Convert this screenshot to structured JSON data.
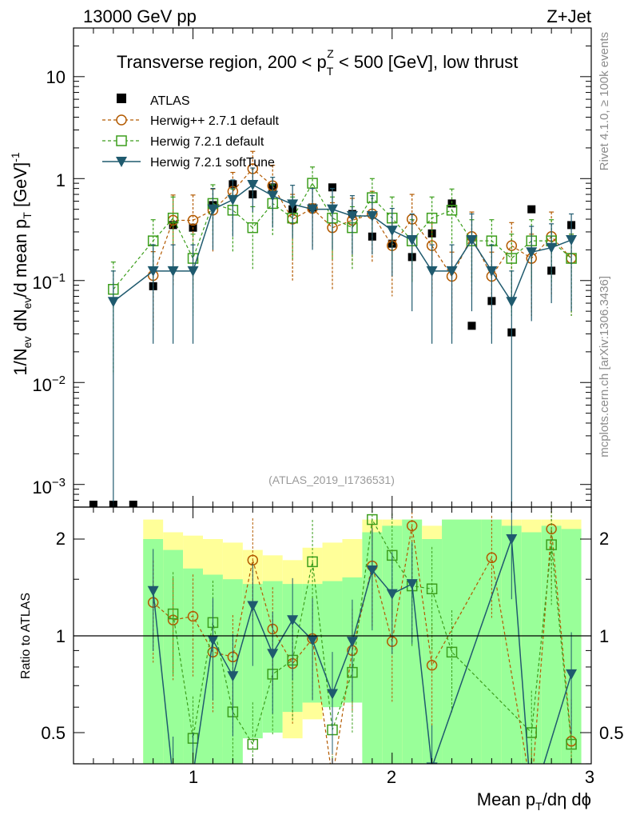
{
  "header": {
    "energy": "13000 GeV pp",
    "process": "Z+Jet"
  },
  "side_labels": {
    "rivet": "Rivet 4.1.0, ≥ 100k events",
    "mcplots": "mcplots.cern.ch [arXiv:1306.3436]"
  },
  "chart_data": {
    "type": "scatter",
    "title": "Transverse region, 200 < p_T^Z < 500 [GeV], low thrust",
    "watermark": "(ATLAS_2019_I1736531)",
    "xlabel": "Mean p_T/dη dϕ",
    "ylabel": "1/N_ev dN_ev/d mean p_T [GeV]^-1",
    "ratio_ylabel": "Ratio to ATLAS",
    "xlim": [
      0.4,
      3.0
    ],
    "ylim": [
      0.0006,
      30
    ],
    "ratio_ylim": [
      0.33,
      2.3
    ],
    "yscale": "log",
    "x_ticks": [
      "1",
      "2",
      "3"
    ],
    "y_ticks": [
      "10^-3",
      "10^-2",
      "10^-1",
      "1",
      "10"
    ],
    "ratio_ticks": [
      "0.5",
      "1",
      "2"
    ],
    "legend": [
      "ATLAS",
      "Herwig++ 2.7.1 default",
      "Herwig 7.2.1 default",
      "Herwig 7.2.1 softTune"
    ],
    "series": [
      {
        "name": "ATLAS",
        "color": "#000000",
        "marker": "square-filled",
        "x": [
          0.5,
          0.6,
          0.7,
          0.8,
          0.9,
          1.0,
          1.1,
          1.2,
          1.3,
          1.4,
          1.5,
          1.6,
          1.7,
          1.8,
          1.9,
          2.0,
          2.1,
          2.2,
          2.3,
          2.4,
          2.5,
          2.6,
          2.7,
          2.8,
          2.9
        ],
        "y": [
          0.00065,
          0.00065,
          0.00065,
          0.088,
          0.35,
          0.33,
          0.55,
          0.88,
          0.7,
          0.82,
          0.5,
          0.52,
          0.82,
          0.45,
          0.27,
          0.23,
          0.17,
          0.29,
          0.57,
          0.036,
          0.063,
          0.031,
          0.5,
          0.125,
          0.35
        ]
      },
      {
        "name": "Herwig++ 2.7.1 default",
        "color": "#b35a00",
        "marker": "circle-open",
        "dash": "4,3",
        "x": [
          0.8,
          0.9,
          1.0,
          1.1,
          1.2,
          1.3,
          1.4,
          1.5,
          1.6,
          1.7,
          1.8,
          1.9,
          2.0,
          2.1,
          2.2,
          2.3,
          2.4,
          2.5,
          2.6,
          2.7,
          2.8,
          2.9
        ],
        "y": [
          0.112,
          0.39,
          0.39,
          0.49,
          0.75,
          1.25,
          0.85,
          0.4,
          0.51,
          0.33,
          0.39,
          0.45,
          0.22,
          0.4,
          0.22,
          0.11,
          0.27,
          0.11,
          0.22,
          0.165,
          0.27,
          0.165
        ],
        "err": [
          0.08,
          0.3,
          0.3,
          0.3,
          0.4,
          0.6,
          0.5,
          0.3,
          0.3,
          0.25,
          0.25,
          0.3,
          0.15,
          0.3,
          0.15,
          0.08,
          0.2,
          0.08,
          0.15,
          0.12,
          0.2,
          0.12
        ]
      },
      {
        "name": "Herwig 7.2.1 default",
        "color": "#3c9e1c",
        "marker": "square-open",
        "dash": "4,3",
        "x": [
          0.6,
          0.8,
          0.9,
          1.0,
          1.1,
          1.2,
          1.3,
          1.4,
          1.5,
          1.6,
          1.7,
          1.8,
          1.9,
          2.0,
          2.1,
          2.2,
          2.3,
          2.4,
          2.5,
          2.6,
          2.7,
          2.8,
          2.9
        ],
        "y": [
          0.082,
          0.245,
          0.41,
          0.165,
          0.57,
          0.49,
          0.33,
          0.57,
          0.41,
          0.9,
          0.41,
          0.33,
          0.65,
          0.41,
          0.245,
          0.41,
          0.49,
          0.245,
          0.245,
          0.165,
          0.245,
          0.245,
          0.165
        ],
        "err": [
          0.07,
          0.15,
          0.25,
          0.12,
          0.3,
          0.3,
          0.2,
          0.3,
          0.25,
          0.4,
          0.25,
          0.2,
          0.35,
          0.25,
          0.15,
          0.25,
          0.3,
          0.15,
          0.15,
          0.12,
          0.15,
          0.15,
          0.12
        ]
      },
      {
        "name": "Herwig 7.2.1 softTune",
        "color": "#1f5a6e",
        "marker": "triangle-down",
        "dash": "",
        "x": [
          0.6,
          0.8,
          0.9,
          1.0,
          1.1,
          1.2,
          1.3,
          1.4,
          1.5,
          1.6,
          1.7,
          1.8,
          1.9,
          2.0,
          2.1,
          2.2,
          2.3,
          2.4,
          2.5,
          2.6,
          2.7,
          2.8,
          2.9
        ],
        "y": [
          0.062,
          0.124,
          0.124,
          0.124,
          0.5,
          0.62,
          0.87,
          0.68,
          0.56,
          0.5,
          0.5,
          0.43,
          0.43,
          0.31,
          0.25,
          0.124,
          0.124,
          0.25,
          0.124,
          0.062,
          0.19,
          0.21,
          0.25
        ],
        "err": [
          0.062,
          0.1,
          0.1,
          0.1,
          0.3,
          0.35,
          0.4,
          0.35,
          0.3,
          0.3,
          0.3,
          0.25,
          0.25,
          0.2,
          0.2,
          0.1,
          0.1,
          0.2,
          0.1,
          0.062,
          0.15,
          0.15,
          0.2
        ]
      }
    ],
    "ratio_series": [
      {
        "name": "Herwig++ 2.7.1 default",
        "x": [
          0.8,
          0.9,
          1.0,
          1.1,
          1.2,
          1.3,
          1.4,
          1.5,
          1.6,
          1.7,
          1.8,
          1.9,
          2.0,
          2.1,
          2.2,
          2.5,
          2.7,
          2.8,
          2.9
        ],
        "y": [
          1.27,
          1.12,
          1.15,
          0.89,
          0.86,
          1.72,
          1.05,
          0.82,
          0.98,
          0.36,
          0.9,
          1.65,
          0.96,
          2.2,
          0.81,
          1.75,
          0.33,
          2.15,
          0.47
        ]
      },
      {
        "name": "Herwig 7.2.1 default",
        "x": [
          0.9,
          1.0,
          1.1,
          1.2,
          1.3,
          1.4,
          1.5,
          1.6,
          1.7,
          1.8,
          1.9,
          2.0,
          2.1,
          2.2,
          2.3,
          2.7,
          2.8,
          2.9
        ],
        "y": [
          1.17,
          0.48,
          1.1,
          0.58,
          0.46,
          0.76,
          0.84,
          1.7,
          0.51,
          0.77,
          2.3,
          1.78,
          1.43,
          1.4,
          0.89,
          0.5,
          1.92,
          0.46
        ]
      },
      {
        "name": "Herwig 7.2.1 softTune",
        "x": [
          0.8,
          0.9,
          1.0,
          1.1,
          1.2,
          1.3,
          1.4,
          1.5,
          1.6,
          1.7,
          1.8,
          1.9,
          2.0,
          2.1,
          2.2,
          2.6,
          2.7,
          2.9
        ],
        "y": [
          1.38,
          0.36,
          0.37,
          0.97,
          0.75,
          1.24,
          0.88,
          1.12,
          0.97,
          0.66,
          0.96,
          1.6,
          1.35,
          1.45,
          0.39,
          2.0,
          0.3,
          0.76
        ]
      }
    ],
    "ratio_bands": {
      "x": [
        0.75,
        0.85,
        0.95,
        1.05,
        1.15,
        1.25,
        1.35,
        1.45,
        1.55,
        1.65,
        1.75,
        1.85,
        1.95,
        2.05,
        2.15,
        2.25,
        2.35,
        2.45,
        2.55,
        2.65,
        2.75,
        2.85,
        2.95
      ],
      "yellow_lo": [
        0.33,
        0.33,
        0.33,
        0.38,
        0.45,
        0.58,
        0.55,
        0.48,
        0.55,
        0.7,
        0.72,
        0.45,
        0.33,
        0.33,
        0.33,
        0.33,
        0.33,
        0.33,
        0.33,
        0.33,
        0.33,
        0.33
      ],
      "yellow_hi": [
        2.3,
        2.1,
        2.05,
        2.0,
        1.95,
        1.85,
        1.78,
        1.72,
        1.88,
        1.95,
        2.0,
        2.3,
        2.3,
        2.3,
        2.2,
        2.3,
        2.3,
        2.3,
        2.3,
        2.3,
        2.3,
        2.3
      ],
      "green_lo": [
        0.33,
        0.33,
        0.33,
        0.33,
        0.38,
        0.48,
        0.5,
        0.58,
        0.62,
        0.6,
        0.62,
        0.33,
        0.33,
        0.33,
        0.33,
        0.33,
        0.33,
        0.33,
        0.33,
        0.33,
        0.33,
        0.33
      ],
      "green_hi": [
        2.0,
        1.85,
        1.62,
        1.55,
        1.5,
        1.45,
        1.48,
        1.45,
        1.45,
        1.48,
        1.52,
        2.1,
        2.2,
        2.3,
        2.0,
        2.3,
        2.3,
        2.3,
        2.2,
        2.1,
        2.2,
        2.15
      ]
    }
  }
}
